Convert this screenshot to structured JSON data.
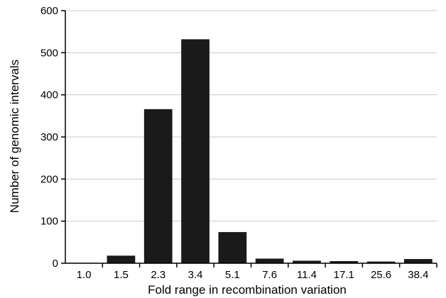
{
  "chart_data": {
    "type": "bar",
    "categories": [
      "1.0",
      "1.5",
      "2.3",
      "3.4",
      "5.1",
      "7.6",
      "11.4",
      "17.1",
      "25.6",
      "38.4"
    ],
    "values": [
      1,
      18,
      366,
      532,
      74,
      11,
      6,
      5,
      4,
      10
    ],
    "title": "",
    "xlabel": "Fold range in recombination variation",
    "ylabel": "Number of genomic intervals",
    "ylim": [
      0,
      600
    ],
    "yticks": [
      0,
      100,
      200,
      300,
      400,
      500,
      600
    ],
    "grid": true,
    "bar_color": "#1a1a1a"
  }
}
